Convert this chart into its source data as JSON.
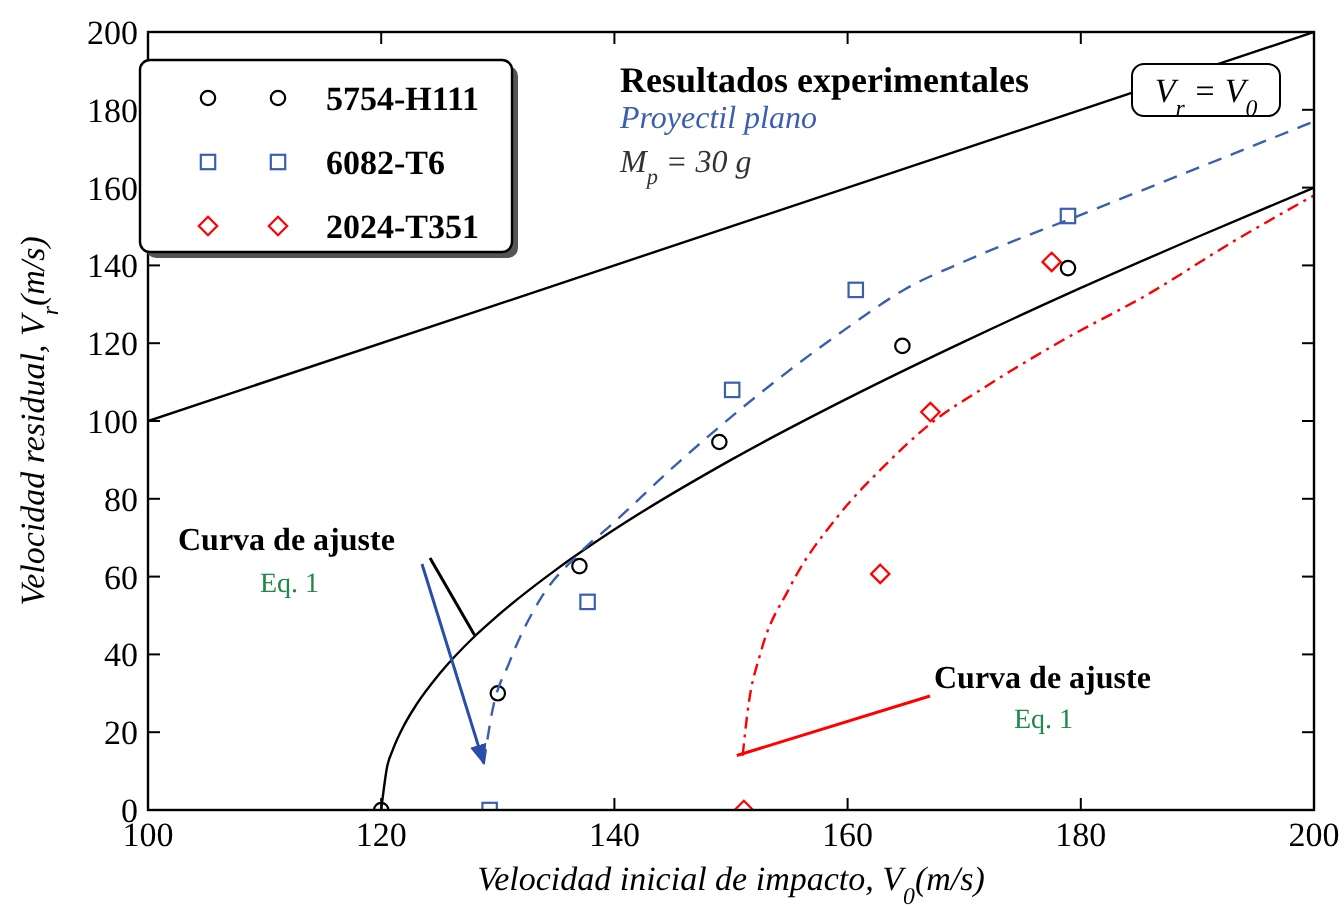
{
  "chart_data": {
    "type": "scatter",
    "xlabel": "Velocidad inicial de impacto, V$_{0}$(m/s)",
    "ylabel": "Velocidad residual, V$_{r}$(m/s)",
    "xlim": [
      100,
      200
    ],
    "ylim": [
      0,
      200
    ],
    "xticks": [
      100,
      120,
      140,
      160,
      180,
      200
    ],
    "yticks": [
      0,
      20,
      40,
      60,
      80,
      100,
      120,
      140,
      160,
      180,
      200
    ],
    "grid": false,
    "legend": "top left",
    "annotations": [
      "Resultados experimentales",
      "Proyectil plano",
      "M$_{p}$ = 30 g",
      "V$_{r}$ = V$_{0}$",
      {
        "text": "Curva de ajuste",
        "x": 128,
        "y": 45
      },
      "Eq. 1",
      {
        "text": "Curva de ajuste",
        "x": 150.5,
        "y": 14
      },
      "Eq. 1"
    ],
    "series": [
      {
        "name": "5754-H111",
        "type": "scatter",
        "marker": "circle",
        "color": "#000000",
        "x": [
          120,
          130,
          137,
          149,
          164.7,
          178.9
        ],
        "values": [
          0,
          30,
          62.7,
          94.6,
          119.3,
          139.3
        ]
      },
      {
        "name": "6082-T6",
        "type": "scatter",
        "marker": "square",
        "color": "#3a5fb0",
        "x": [
          129.3,
          137.7,
          150.1,
          160.7,
          178.9
        ],
        "values": [
          0,
          53.5,
          108,
          133.7,
          152.7
        ]
      },
      {
        "name": "2024-T351",
        "type": "scatter",
        "marker": "diamond",
        "color": "#ff0000",
        "x": [
          151.1,
          162.8,
          167.1,
          177.5
        ],
        "values": [
          0,
          60.7,
          102.3,
          140.9
        ]
      },
      {
        "type": "line",
        "line_style": "solid",
        "color": "#000000",
        "x": [
          100,
          200
        ],
        "values": [
          100,
          200
        ]
      },
      {
        "type": "line",
        "line_style": "solid",
        "color": "#000000",
        "x": [
          120,
          120.5,
          121,
          122,
          123,
          125,
          128,
          130,
          135,
          140,
          150,
          160,
          170,
          180,
          190,
          200
        ],
        "values": [
          0,
          11,
          15.5,
          22,
          27,
          35,
          44.6,
          50,
          61.8,
          72.1,
          90,
          105.8,
          120.4,
          134.2,
          147.3,
          160
        ]
      },
      {
        "type": "line",
        "line_style": "dashed",
        "color": "#3a5fb0",
        "x": [
          128.8,
          129.5,
          131,
          133.6,
          137,
          140,
          145,
          150,
          155,
          160,
          165,
          170,
          180,
          190,
          200
        ],
        "values": [
          12,
          25,
          38,
          54,
          66,
          74,
          88,
          101,
          113,
          124,
          134,
          141,
          153,
          165,
          177
        ]
      },
      {
        "type": "line",
        "line_style": "dashdot",
        "color": "#ff0000",
        "x": [
          151,
          151.5,
          152.5,
          155,
          159.3,
          163,
          167.4,
          171.4,
          178,
          186,
          193,
          200
        ],
        "values": [
          14,
          27,
          40,
          57,
          76,
          88,
          100,
          108,
          120,
          133,
          146,
          158
        ]
      }
    ]
  }
}
